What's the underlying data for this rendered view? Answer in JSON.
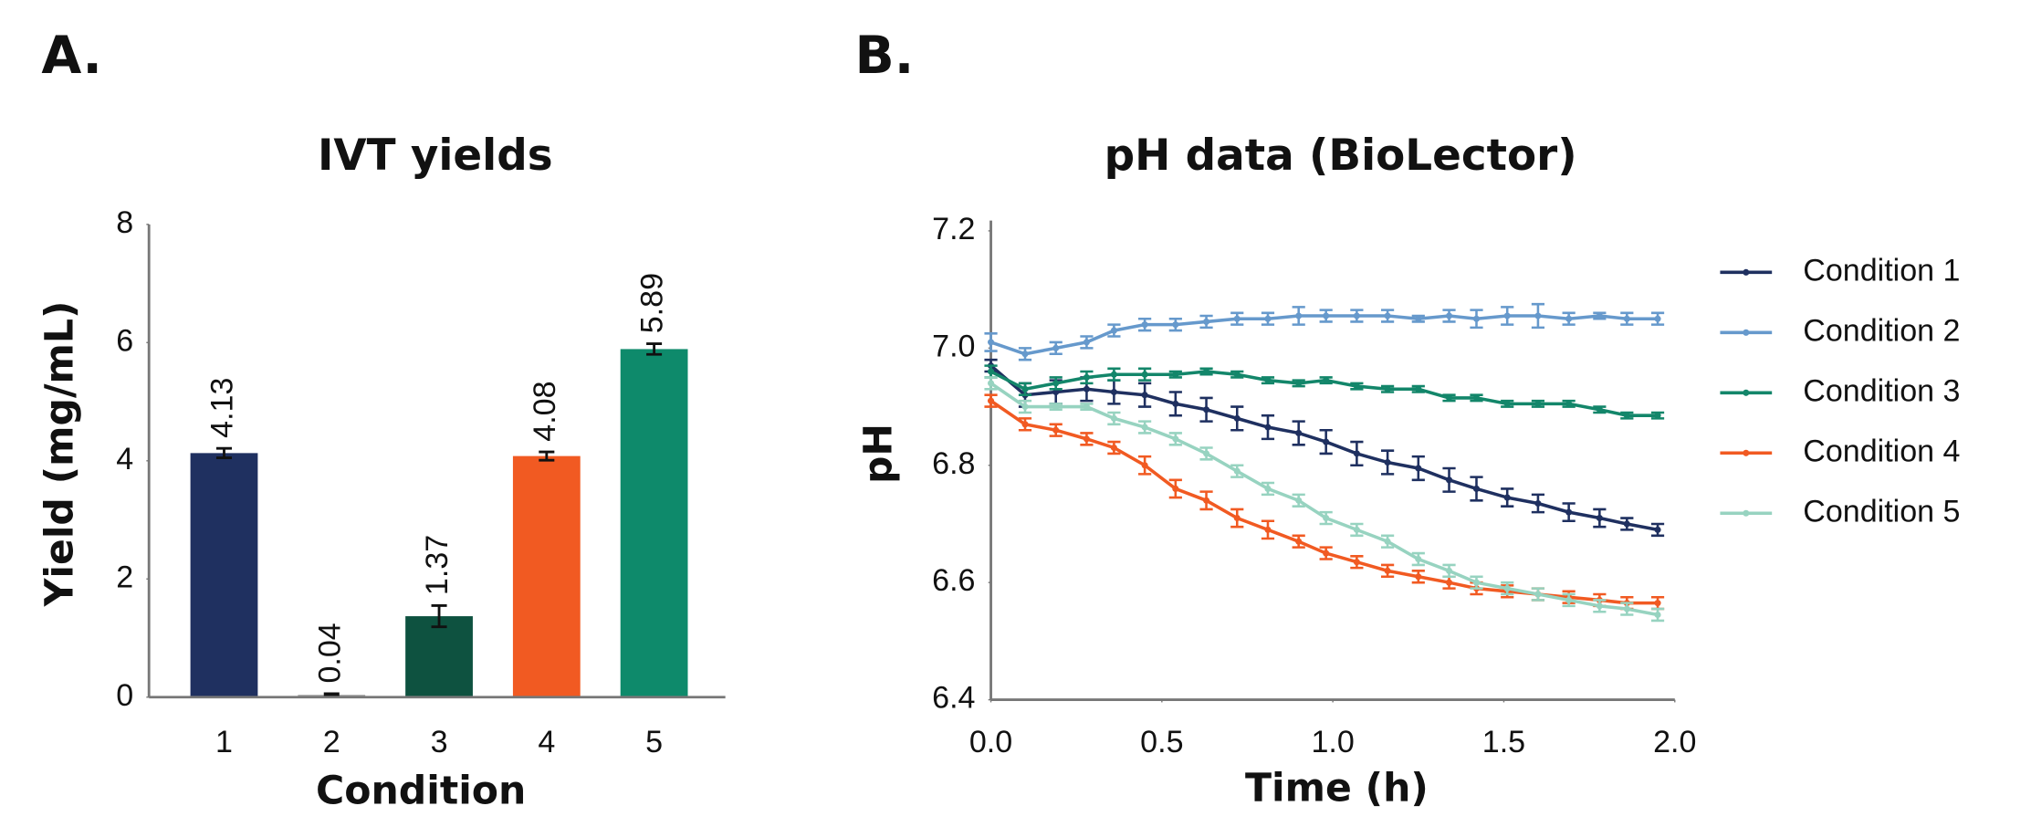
{
  "chart_data": [
    {
      "type": "bar",
      "label": "A.",
      "title": "IVT yields",
      "xlabel": "Condition",
      "ylabel": "Yield (mg/mL)",
      "categories": [
        "1",
        "2",
        "3",
        "4",
        "5"
      ],
      "values": [
        4.13,
        0.04,
        1.37,
        4.08,
        5.89
      ],
      "errors": [
        0.08,
        0.02,
        0.18,
        0.07,
        0.09
      ],
      "colors": [
        "#1f3060",
        "#a6a6a6",
        "#0e5240",
        "#f15a22",
        "#0e8a6b"
      ],
      "ylim": [
        0,
        8
      ],
      "yticks": [
        0,
        2,
        4,
        6,
        8
      ],
      "grid": false
    },
    {
      "type": "line",
      "label": "B.",
      "title": "pH data (BioLector)",
      "xlabel": "Time (h)",
      "ylabel": "pH",
      "x": [
        0,
        0.1,
        0.19,
        0.28,
        0.36,
        0.45,
        0.54,
        0.63,
        0.72,
        0.81,
        0.9,
        0.98,
        1.07,
        1.16,
        1.25,
        1.34,
        1.42,
        1.51,
        1.6,
        1.69,
        1.78,
        1.86,
        1.95
      ],
      "series": [
        {
          "name": "Condition 1",
          "color": "#1f3060",
          "values": [
            6.97,
            6.92,
            6.925,
            6.93,
            6.925,
            6.92,
            6.905,
            6.895,
            6.88,
            6.865,
            6.855,
            6.84,
            6.82,
            6.805,
            6.795,
            6.775,
            6.76,
            6.745,
            6.735,
            6.72,
            6.71,
            6.7,
            6.69
          ],
          "errors": [
            0.01,
            0.02,
            0.02,
            0.02,
            0.02,
            0.02,
            0.02,
            0.02,
            0.02,
            0.02,
            0.02,
            0.02,
            0.02,
            0.02,
            0.02,
            0.02,
            0.02,
            0.015,
            0.015,
            0.015,
            0.015,
            0.01,
            0.01
          ]
        },
        {
          "name": "Condition 2",
          "color": "#6699cc",
          "values": [
            7.01,
            6.99,
            7.0,
            7.01,
            7.03,
            7.04,
            7.04,
            7.045,
            7.05,
            7.05,
            7.055,
            7.055,
            7.055,
            7.055,
            7.05,
            7.055,
            7.05,
            7.055,
            7.055,
            7.05,
            7.055,
            7.05,
            7.05
          ],
          "errors": [
            0.015,
            0.01,
            0.01,
            0.01,
            0.01,
            0.01,
            0.01,
            0.01,
            0.01,
            0.01,
            0.015,
            0.01,
            0.01,
            0.01,
            0.005,
            0.01,
            0.015,
            0.015,
            0.02,
            0.01,
            0.005,
            0.01,
            0.01
          ]
        },
        {
          "name": "Condition 3",
          "color": "#13866a",
          "values": [
            6.96,
            6.93,
            6.94,
            6.95,
            6.955,
            6.955,
            6.955,
            6.96,
            6.955,
            6.945,
            6.94,
            6.945,
            6.935,
            6.93,
            6.93,
            6.915,
            6.915,
            6.905,
            6.905,
            6.905,
            6.895,
            6.885,
            6.885
          ],
          "errors": [
            0.01,
            0.01,
            0.01,
            0.01,
            0.01,
            0.01,
            0.005,
            0.005,
            0.005,
            0.005,
            0.005,
            0.005,
            0.005,
            0.005,
            0.005,
            0.005,
            0.005,
            0.005,
            0.005,
            0.005,
            0.005,
            0.005,
            0.005
          ]
        },
        {
          "name": "Condition 4",
          "color": "#f15a22",
          "values": [
            6.91,
            6.87,
            6.86,
            6.845,
            6.83,
            6.8,
            6.76,
            6.74,
            6.71,
            6.69,
            6.67,
            6.65,
            6.635,
            6.62,
            6.61,
            6.6,
            6.59,
            6.585,
            6.58,
            6.575,
            6.57,
            6.565,
            6.565
          ],
          "errors": [
            0.01,
            0.01,
            0.01,
            0.01,
            0.01,
            0.015,
            0.015,
            0.015,
            0.015,
            0.015,
            0.01,
            0.01,
            0.01,
            0.01,
            0.01,
            0.01,
            0.01,
            0.01,
            0.01,
            0.01,
            0.01,
            0.01,
            0.01
          ]
        },
        {
          "name": "Condition 5",
          "color": "#97d3c0",
          "values": [
            6.94,
            6.9,
            6.9,
            6.9,
            6.88,
            6.865,
            6.845,
            6.82,
            6.79,
            6.76,
            6.74,
            6.71,
            6.69,
            6.67,
            6.64,
            6.62,
            6.6,
            6.59,
            6.58,
            6.57,
            6.56,
            6.555,
            6.545
          ],
          "errors": [
            0.01,
            0.01,
            0.005,
            0.005,
            0.01,
            0.01,
            0.01,
            0.01,
            0.01,
            0.01,
            0.01,
            0.01,
            0.01,
            0.01,
            0.01,
            0.01,
            0.01,
            0.01,
            0.01,
            0.01,
            0.01,
            0.01,
            0.01
          ]
        }
      ],
      "xlim": [
        0,
        2
      ],
      "xticks": [
        {
          "value": 0,
          "label": "0.0"
        },
        0.5,
        {
          "value": 1,
          "label": "1.0"
        },
        1.5,
        {
          "value": 2,
          "label": "2.0"
        }
      ],
      "ylim": [
        6.4,
        7.2
      ],
      "yticks": [
        6.4,
        6.6,
        6.8,
        {
          "value": 7,
          "label": "7.0"
        },
        7.2
      ],
      "grid": false,
      "legend": "right"
    }
  ]
}
